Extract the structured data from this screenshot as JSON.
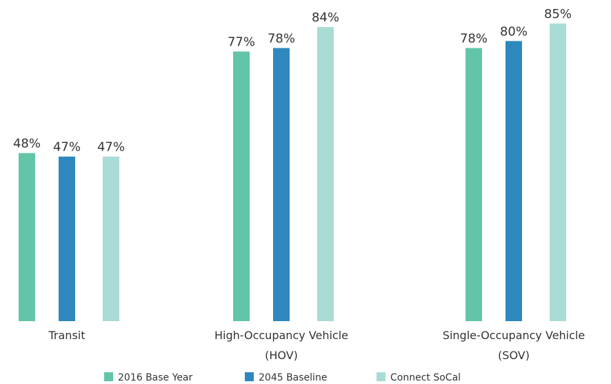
{
  "chart_data": {
    "type": "bar",
    "categories": [
      [
        "Transit"
      ],
      [
        "High-Occupancy Vehicle",
        "(HOV)"
      ],
      [
        "Single-Occupancy Vehicle",
        "(SOV)"
      ]
    ],
    "series": [
      {
        "name": "2016 Base Year",
        "color": "#62c5a9",
        "values": [
          48,
          77,
          78
        ],
        "labels": [
          "48%",
          "77%",
          "78%"
        ]
      },
      {
        "name": "2045 Baseline",
        "color": "#2e88bd",
        "values": [
          47,
          78,
          80
        ],
        "labels": [
          "47%",
          "78%",
          "80%"
        ]
      },
      {
        "name": "Connect SoCal",
        "color": "#a8dcd4",
        "values": [
          47,
          84,
          85
        ],
        "labels": [
          "47%",
          "84%",
          "85%"
        ]
      }
    ],
    "value_format": "percent",
    "ylim": [
      0,
      100
    ],
    "grid": false,
    "legend_position": "bottom"
  }
}
